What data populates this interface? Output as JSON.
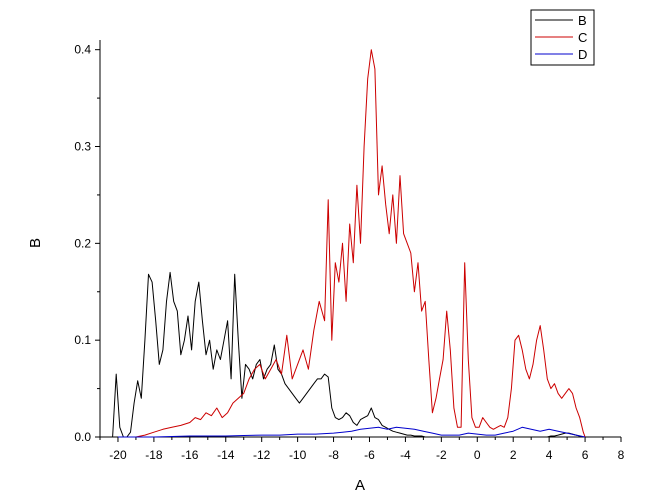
{
  "chart_data": {
    "type": "line",
    "title": "",
    "xlabel": "A",
    "ylabel": "B",
    "xlim": [
      -21,
      8
    ],
    "ylim": [
      0,
      0.41
    ],
    "xticks": [
      -20,
      -18,
      -16,
      -14,
      -12,
      -10,
      -8,
      -6,
      -4,
      -2,
      0,
      2,
      4,
      6,
      8
    ],
    "yticks": [
      0.0,
      0.1,
      0.2,
      0.3,
      0.4
    ],
    "ytick_labels": [
      "0.0",
      "0.1",
      "0.2",
      "0.3",
      "0.4"
    ],
    "grid": false,
    "legend": "top-right",
    "series": [
      {
        "name": "B",
        "color": "#000000",
        "x": [
          -20.3,
          -20.1,
          -19.9,
          -19.7,
          -19.5,
          -19.3,
          -19.1,
          -18.9,
          -18.7,
          -18.5,
          -18.3,
          -18.1,
          -17.9,
          -17.7,
          -17.5,
          -17.3,
          -17.1,
          -16.9,
          -16.7,
          -16.5,
          -16.3,
          -16.1,
          -15.9,
          -15.7,
          -15.5,
          -15.3,
          -15.1,
          -14.9,
          -14.7,
          -14.5,
          -14.3,
          -14.1,
          -13.9,
          -13.7,
          -13.5,
          -13.3,
          -13.1,
          -12.9,
          -12.7,
          -12.5,
          -12.3,
          -12.1,
          -11.9,
          -11.7,
          -11.5,
          -11.3,
          -11.1,
          -10.9,
          -10.7,
          -10.5,
          -10.3,
          -10.1,
          -9.9,
          -9.7,
          -9.5,
          -9.3,
          -9.1,
          -8.9,
          -8.7,
          -8.5,
          -8.3,
          -8.1,
          -7.9,
          -7.7,
          -7.5,
          -7.3,
          -7.1,
          -6.9,
          -6.7,
          -6.5,
          -6.3,
          -6.1,
          -5.9,
          -5.7,
          -5.5,
          -5.3,
          -5.1,
          -4.9,
          -4.7,
          -4.5,
          -4.3,
          -4.1,
          -3.9,
          -3.7,
          -3.5,
          -3.3,
          -3.1,
          -2.9,
          -2.7,
          -2.5,
          -2.3,
          -2.1,
          -1.9,
          -1.7,
          -1.5,
          -1.3,
          -1.1,
          -0.9,
          -0.7,
          -0.5,
          -0.3,
          -0.1,
          0.1,
          0.3,
          0.5,
          0.7,
          0.9,
          1.1,
          1.3,
          1.5,
          1.7,
          1.9,
          2.1,
          2.3,
          2.5,
          2.7,
          2.9,
          3.1,
          3.3,
          3.5,
          3.7,
          3.9,
          4.1,
          4.3,
          4.5,
          4.7,
          4.9,
          5.1,
          5.3,
          5.5,
          5.7,
          5.9,
          6.0
        ],
        "y": [
          0.0,
          0.065,
          0.01,
          0.0,
          0.0,
          0.005,
          0.035,
          0.058,
          0.04,
          0.1,
          0.168,
          0.16,
          0.12,
          0.075,
          0.09,
          0.14,
          0.17,
          0.14,
          0.13,
          0.085,
          0.1,
          0.125,
          0.09,
          0.14,
          0.16,
          0.12,
          0.085,
          0.1,
          0.07,
          0.09,
          0.08,
          0.1,
          0.12,
          0.06,
          0.168,
          0.1,
          0.04,
          0.075,
          0.07,
          0.06,
          0.075,
          0.08,
          0.06,
          0.07,
          0.075,
          0.095,
          0.07,
          0.065,
          0.055,
          0.05,
          0.045,
          0.04,
          0.035,
          0.04,
          0.045,
          0.05,
          0.055,
          0.06,
          0.06,
          0.065,
          0.062,
          0.03,
          0.02,
          0.018,
          0.02,
          0.025,
          0.022,
          0.015,
          0.012,
          0.018,
          0.02,
          0.022,
          0.03,
          0.02,
          0.018,
          0.012,
          0.01,
          0.008,
          0.006,
          0.005,
          0.004,
          0.003,
          0.002,
          0.002,
          0.001,
          0.001,
          0.001,
          0.0,
          0.0,
          0.0,
          0.0,
          0.0,
          0.0,
          0.0,
          0.0,
          0.0,
          0.0,
          0.0,
          0.0,
          0.0,
          0.0,
          0.0,
          0.0,
          0.0,
          0.0,
          0.0,
          0.0,
          0.0,
          0.0,
          0.0,
          0.0,
          0.0,
          0.0,
          0.0,
          0.0,
          0.0,
          0.0,
          0.0,
          0.0,
          0.0,
          0.0,
          0.0,
          0.001,
          0.001,
          0.002,
          0.003,
          0.004,
          0.004,
          0.003,
          0.002,
          0.001,
          0.0,
          0.0
        ]
      },
      {
        "name": "C",
        "color": "#cc0000",
        "x": [
          -20.0,
          -19.5,
          -19.0,
          -18.5,
          -18.0,
          -17.5,
          -17.0,
          -16.5,
          -16.0,
          -15.7,
          -15.4,
          -15.1,
          -14.8,
          -14.5,
          -14.2,
          -13.9,
          -13.6,
          -13.3,
          -13.0,
          -12.7,
          -12.4,
          -12.1,
          -11.8,
          -11.5,
          -11.2,
          -10.9,
          -10.6,
          -10.3,
          -10.0,
          -9.7,
          -9.4,
          -9.1,
          -8.8,
          -8.5,
          -8.3,
          -8.1,
          -7.9,
          -7.7,
          -7.5,
          -7.3,
          -7.1,
          -6.9,
          -6.7,
          -6.5,
          -6.3,
          -6.1,
          -5.9,
          -5.7,
          -5.5,
          -5.3,
          -5.1,
          -4.9,
          -4.7,
          -4.5,
          -4.3,
          -4.1,
          -3.9,
          -3.7,
          -3.5,
          -3.3,
          -3.1,
          -2.9,
          -2.7,
          -2.5,
          -2.3,
          -2.1,
          -1.9,
          -1.7,
          -1.5,
          -1.3,
          -1.1,
          -0.9,
          -0.7,
          -0.5,
          -0.3,
          -0.1,
          0.1,
          0.3,
          0.5,
          0.7,
          0.9,
          1.1,
          1.3,
          1.5,
          1.7,
          1.9,
          2.1,
          2.3,
          2.5,
          2.7,
          2.9,
          3.1,
          3.3,
          3.5,
          3.7,
          3.9,
          4.1,
          4.3,
          4.5,
          4.7,
          4.9,
          5.1,
          5.3,
          5.5,
          5.7,
          5.9,
          6.0
        ],
        "y": [
          0.0,
          0.0,
          0.0,
          0.002,
          0.005,
          0.008,
          0.01,
          0.012,
          0.015,
          0.02,
          0.018,
          0.025,
          0.022,
          0.03,
          0.02,
          0.025,
          0.035,
          0.04,
          0.045,
          0.06,
          0.07,
          0.075,
          0.06,
          0.07,
          0.08,
          0.065,
          0.105,
          0.06,
          0.075,
          0.09,
          0.07,
          0.11,
          0.14,
          0.12,
          0.245,
          0.1,
          0.18,
          0.16,
          0.2,
          0.14,
          0.22,
          0.18,
          0.26,
          0.2,
          0.3,
          0.37,
          0.4,
          0.38,
          0.25,
          0.28,
          0.24,
          0.21,
          0.25,
          0.2,
          0.27,
          0.21,
          0.2,
          0.19,
          0.15,
          0.18,
          0.13,
          0.14,
          0.08,
          0.025,
          0.04,
          0.06,
          0.08,
          0.13,
          0.09,
          0.03,
          0.01,
          0.01,
          0.18,
          0.08,
          0.02,
          0.01,
          0.01,
          0.02,
          0.015,
          0.01,
          0.008,
          0.01,
          0.012,
          0.01,
          0.02,
          0.05,
          0.1,
          0.105,
          0.09,
          0.07,
          0.06,
          0.075,
          0.1,
          0.115,
          0.09,
          0.06,
          0.05,
          0.055,
          0.045,
          0.04,
          0.045,
          0.05,
          0.045,
          0.03,
          0.02,
          0.005,
          0.0
        ]
      },
      {
        "name": "D",
        "color": "#0000cc",
        "x": [
          -20.0,
          -19.0,
          -18.0,
          -17.0,
          -16.0,
          -15.0,
          -14.0,
          -13.0,
          -12.0,
          -11.0,
          -10.0,
          -9.0,
          -8.0,
          -7.5,
          -7.0,
          -6.5,
          -6.0,
          -5.5,
          -5.0,
          -4.5,
          -4.0,
          -3.5,
          -3.0,
          -2.5,
          -2.0,
          -1.5,
          -1.0,
          -0.5,
          0.0,
          0.5,
          1.0,
          1.5,
          2.0,
          2.5,
          3.0,
          3.5,
          4.0,
          4.5,
          5.0,
          5.5,
          6.0
        ],
        "y": [
          0.0,
          0.0,
          0.0,
          0.0005,
          0.001,
          0.001,
          0.001,
          0.0015,
          0.002,
          0.002,
          0.003,
          0.003,
          0.004,
          0.005,
          0.006,
          0.008,
          0.009,
          0.01,
          0.008,
          0.01,
          0.009,
          0.008,
          0.006,
          0.004,
          0.002,
          0.002,
          0.002,
          0.004,
          0.003,
          0.002,
          0.002,
          0.004,
          0.006,
          0.01,
          0.008,
          0.006,
          0.008,
          0.006,
          0.004,
          0.002,
          0.0
        ]
      }
    ]
  }
}
